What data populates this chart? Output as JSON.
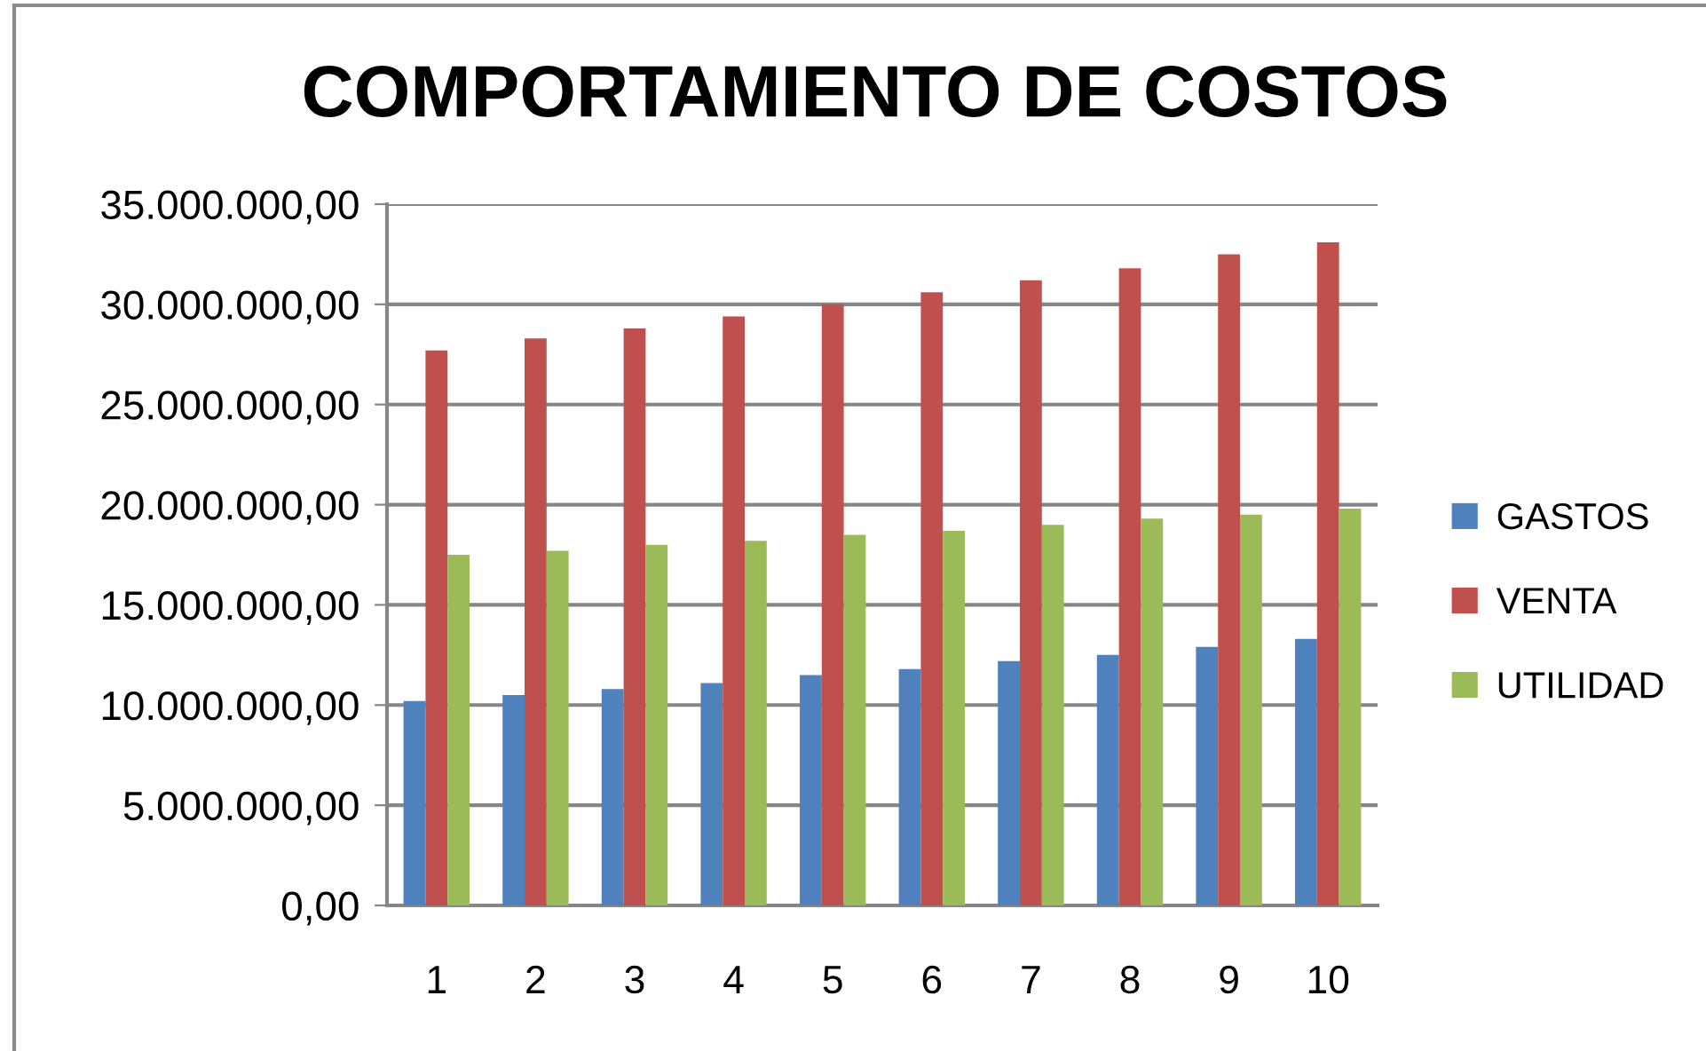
{
  "chart_data": {
    "type": "bar",
    "title": "COMPORTAMIENTO DE COSTOS",
    "categories": [
      "1",
      "2",
      "3",
      "4",
      "5",
      "6",
      "7",
      "8",
      "9",
      "10"
    ],
    "series": [
      {
        "name": "GASTOS",
        "color": "#4f81bd",
        "values": [
          10200000,
          10500000,
          10800000,
          11100000,
          11500000,
          11800000,
          12200000,
          12500000,
          12900000,
          13300000
        ]
      },
      {
        "name": "VENTA",
        "color": "#c0504d",
        "values": [
          27700000,
          28300000,
          28800000,
          29400000,
          30000000,
          30600000,
          31200000,
          31800000,
          32500000,
          33100000
        ]
      },
      {
        "name": "UTILIDAD",
        "color": "#9bbb59",
        "values": [
          17500000,
          17700000,
          18000000,
          18200000,
          18500000,
          18700000,
          19000000,
          19300000,
          19500000,
          19800000
        ]
      }
    ],
    "ylim": [
      0,
      35000000
    ],
    "yticks": [
      {
        "value": 0,
        "label": "0,00"
      },
      {
        "value": 5000000,
        "label": "5.000.000,00"
      },
      {
        "value": 10000000,
        "label": "10.000.000,00"
      },
      {
        "value": 15000000,
        "label": "15.000.000,00"
      },
      {
        "value": 20000000,
        "label": "20.000.000,00"
      },
      {
        "value": 25000000,
        "label": "25.000.000,00"
      },
      {
        "value": 30000000,
        "label": "30.000.000,00"
      },
      {
        "value": 35000000,
        "label": "35.000.000,00"
      }
    ],
    "grid": "y",
    "legend": "right"
  }
}
